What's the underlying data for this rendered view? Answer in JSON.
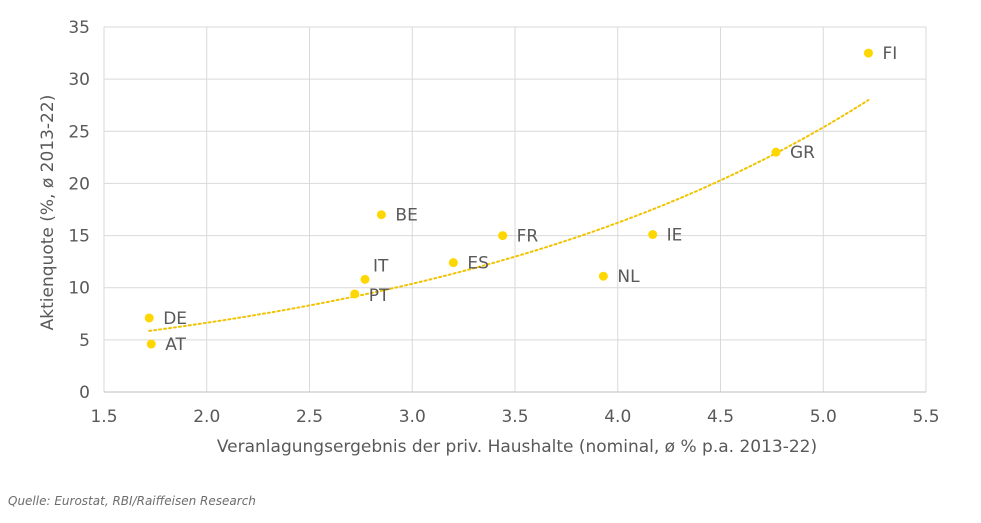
{
  "chart_data": {
    "type": "scatter",
    "title": "",
    "xlabel": "Veranlagungsergebnis der priv. Haushalte (nominal, ø % p.a. 2013-22)",
    "ylabel": "Aktienquote (%, ø 2013-22)",
    "xlim": [
      1.5,
      5.5
    ],
    "ylim": [
      0,
      35
    ],
    "xticks": [
      "1.5",
      "2.0",
      "2.5",
      "3.0",
      "3.5",
      "4.0",
      "4.5",
      "5.0",
      "5.5"
    ],
    "yticks": [
      "0",
      "5",
      "10",
      "15",
      "20",
      "25",
      "30",
      "35"
    ],
    "grid": true,
    "legend": "none",
    "points": [
      {
        "label": "FI",
        "x": 5.22,
        "y": 32.5
      },
      {
        "label": "GR",
        "x": 4.77,
        "y": 23.0
      },
      {
        "label": "BE",
        "x": 2.85,
        "y": 17.0
      },
      {
        "label": "FR",
        "x": 3.44,
        "y": 15.0
      },
      {
        "label": "IE",
        "x": 4.17,
        "y": 15.1
      },
      {
        "label": "ES",
        "x": 3.2,
        "y": 12.4
      },
      {
        "label": "NL",
        "x": 3.93,
        "y": 11.1
      },
      {
        "label": "IT",
        "x": 2.77,
        "y": 10.8
      },
      {
        "label": "PT",
        "x": 2.72,
        "y": 9.4
      },
      {
        "label": "DE",
        "x": 1.72,
        "y": 7.1
      },
      {
        "label": "AT",
        "x": 1.73,
        "y": 4.6
      }
    ],
    "trendline": {
      "type": "exponential",
      "style": "dotted",
      "x_range": [
        1.72,
        5.22
      ],
      "a": 2.715,
      "b": 0.447
    },
    "colors": {
      "points": "#FFD700",
      "trendline": "#F2C300",
      "grid": "#d9d9d9",
      "text": "#595959"
    }
  },
  "source": "Quelle: Eurostat, RBI/Raiffeisen Research"
}
